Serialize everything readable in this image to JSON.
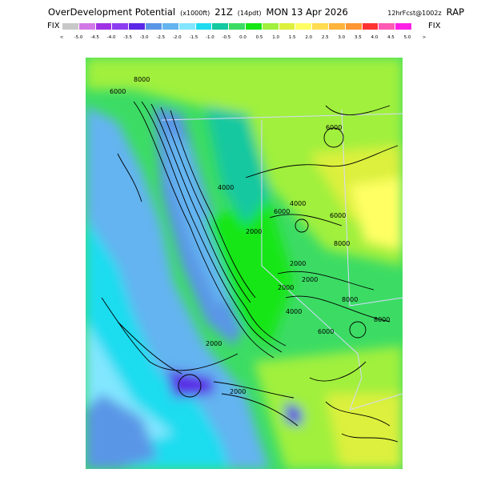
{
  "header": {
    "product": "OverDevelopment Potential",
    "units": "(x1000ft)",
    "valid_hour": "21Z",
    "local_time": "(14pdt)",
    "date": "MON 13 Apr 2026",
    "forecast": "12hrFcst@1002z",
    "model": "RAP"
  },
  "colorbar": {
    "left_label": "FIX",
    "right_label": "FIX",
    "under_symbol": "<",
    "over_symbol": ">",
    "levels": [
      "-5.0",
      "-4.5",
      "-4.0",
      "-3.5",
      "-3.0",
      "-2.5",
      "-2.0",
      "-1.5",
      "-1.0",
      "-0.5",
      "0.0",
      "0.5",
      "1.0",
      "1.5",
      "2.0",
      "2.5",
      "3.0",
      "3.5",
      "4.0",
      "4.5",
      "5.0"
    ],
    "colors": [
      "#c8c8c8",
      "#d278e6",
      "#a032e6",
      "#8c3cf0",
      "#5a28e6",
      "#5a96e6",
      "#64b4f0",
      "#82e6ff",
      "#1edcf0",
      "#14c8a0",
      "#3cdc64",
      "#14e614",
      "#a0f03c",
      "#dcf03c",
      "#ffff64",
      "#ffdc50",
      "#ffb43c",
      "#ff9632",
      "#ff3232",
      "#ff5ab4",
      "#ff1ee6"
    ]
  },
  "map": {
    "contour_labels": [
      "6000",
      "8000",
      "6000",
      "4000",
      "2000",
      "4000",
      "6000",
      "6000",
      "8000",
      "2000",
      "2000",
      "2000",
      "4000",
      "8000",
      "2000",
      "6000",
      "8000",
      "2000"
    ]
  }
}
